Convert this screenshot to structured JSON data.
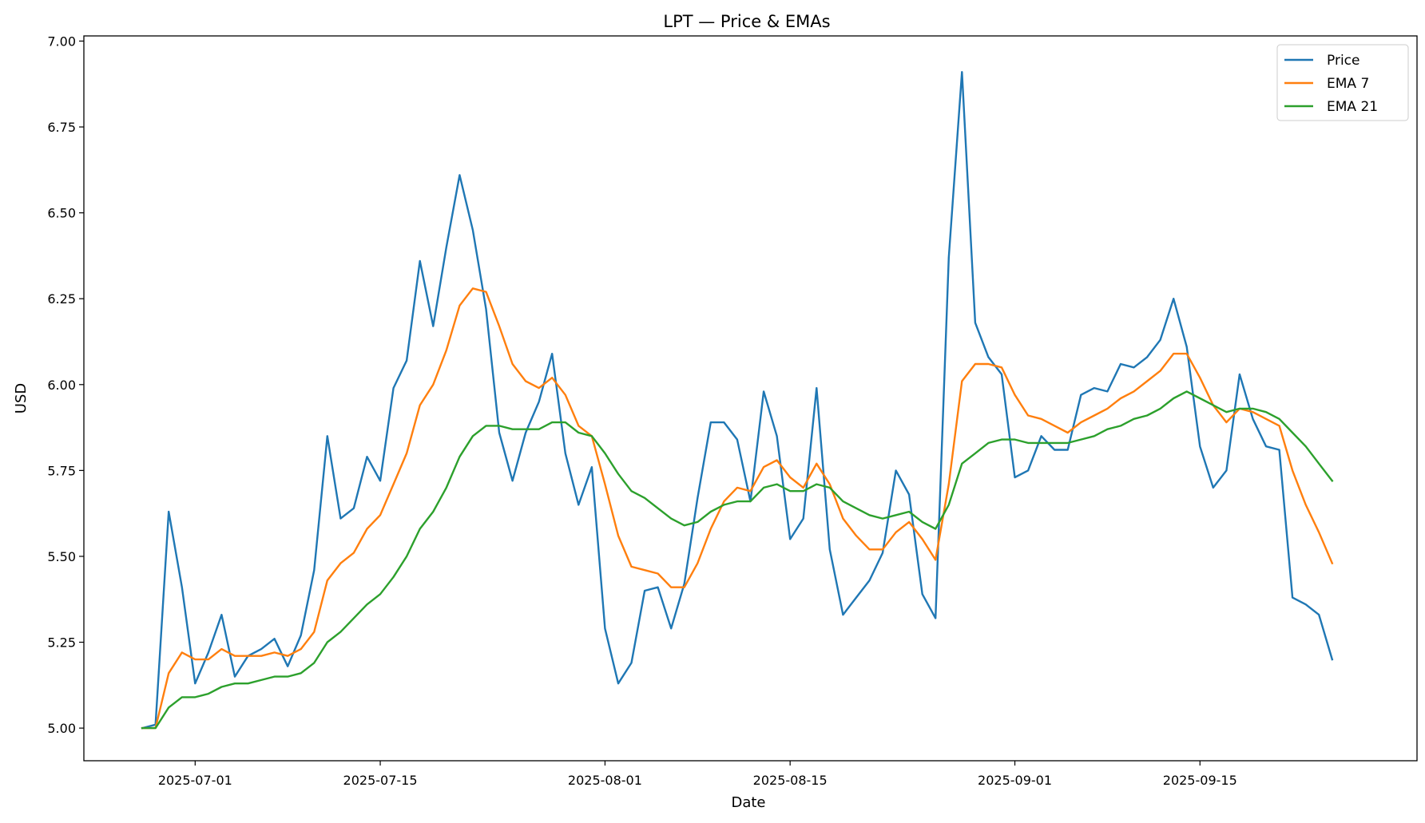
{
  "chart_data": {
    "type": "line",
    "title": "LPT — Price & EMAs",
    "xlabel": "Date",
    "ylabel": "USD",
    "start_date": "2025-06-27",
    "x_ticks": [
      "2025-07-01",
      "2025-07-15",
      "2025-08-01",
      "2025-08-15",
      "2025-09-01",
      "2025-09-15"
    ],
    "y_ticks": [
      "5.00",
      "5.25",
      "5.50",
      "5.75",
      "6.00",
      "6.25",
      "6.50",
      "6.75",
      "7.00"
    ],
    "xlim": [
      "2025-06-22T14:00",
      "2025-10-01T10:00"
    ],
    "ylim": [
      4.905,
      7.015
    ],
    "grid": false,
    "legend_position": "upper-right",
    "series": [
      {
        "name": "Price",
        "color": "#1f77b4",
        "values": [
          5.0,
          5.01,
          5.63,
          5.41,
          5.13,
          5.22,
          5.33,
          5.15,
          5.21,
          5.23,
          5.26,
          5.18,
          5.27,
          5.46,
          5.85,
          5.61,
          5.64,
          5.79,
          5.72,
          5.99,
          6.07,
          6.36,
          6.17,
          6.4,
          6.61,
          6.45,
          6.22,
          5.86,
          5.72,
          5.86,
          5.95,
          6.09,
          5.8,
          5.65,
          5.76,
          5.29,
          5.13,
          5.19,
          5.4,
          5.41,
          5.29,
          5.42,
          5.67,
          5.89,
          5.89,
          5.84,
          5.66,
          5.98,
          5.85,
          5.55,
          5.61,
          5.99,
          5.52,
          5.33,
          5.38,
          5.43,
          5.51,
          5.75,
          5.68,
          5.39,
          5.32,
          6.37,
          6.91,
          6.18,
          6.08,
          6.03,
          5.73,
          5.75,
          5.85,
          5.81,
          5.81,
          5.97,
          5.99,
          5.98,
          6.06,
          6.05,
          6.08,
          6.13,
          6.25,
          6.11,
          5.82,
          5.7,
          5.75,
          6.03,
          5.9,
          5.82,
          5.81,
          5.38,
          5.36,
          5.33,
          5.2
        ]
      },
      {
        "name": "EMA 7",
        "color": "#ff7f0e",
        "values": [
          5.0,
          5.0,
          5.16,
          5.22,
          5.2,
          5.2,
          5.23,
          5.21,
          5.21,
          5.21,
          5.22,
          5.21,
          5.23,
          5.28,
          5.43,
          5.48,
          5.51,
          5.58,
          5.62,
          5.71,
          5.8,
          5.94,
          6.0,
          6.1,
          6.23,
          6.28,
          6.27,
          6.17,
          6.06,
          6.01,
          5.99,
          6.02,
          5.97,
          5.88,
          5.85,
          5.71,
          5.56,
          5.47,
          5.46,
          5.45,
          5.41,
          5.41,
          5.48,
          5.58,
          5.66,
          5.7,
          5.69,
          5.76,
          5.78,
          5.73,
          5.7,
          5.77,
          5.71,
          5.61,
          5.56,
          5.52,
          5.52,
          5.57,
          5.6,
          5.55,
          5.49,
          5.71,
          6.01,
          6.06,
          6.06,
          6.05,
          5.97,
          5.91,
          5.9,
          5.88,
          5.86,
          5.89,
          5.91,
          5.93,
          5.96,
          5.98,
          6.01,
          6.04,
          6.09,
          6.09,
          6.02,
          5.94,
          5.89,
          5.93,
          5.92,
          5.9,
          5.88,
          5.75,
          5.65,
          5.57,
          5.48
        ]
      },
      {
        "name": "EMA 21",
        "color": "#2ca02c",
        "values": [
          5.0,
          5.0,
          5.06,
          5.09,
          5.09,
          5.1,
          5.12,
          5.13,
          5.13,
          5.14,
          5.15,
          5.15,
          5.16,
          5.19,
          5.25,
          5.28,
          5.32,
          5.36,
          5.39,
          5.44,
          5.5,
          5.58,
          5.63,
          5.7,
          5.79,
          5.85,
          5.88,
          5.88,
          5.87,
          5.87,
          5.87,
          5.89,
          5.89,
          5.86,
          5.85,
          5.8,
          5.74,
          5.69,
          5.67,
          5.64,
          5.61,
          5.59,
          5.6,
          5.63,
          5.65,
          5.66,
          5.66,
          5.7,
          5.71,
          5.69,
          5.69,
          5.71,
          5.7,
          5.66,
          5.64,
          5.62,
          5.61,
          5.62,
          5.63,
          5.6,
          5.58,
          5.65,
          5.77,
          5.8,
          5.83,
          5.84,
          5.84,
          5.83,
          5.83,
          5.83,
          5.83,
          5.84,
          5.85,
          5.87,
          5.88,
          5.9,
          5.91,
          5.93,
          5.96,
          5.98,
          5.96,
          5.94,
          5.92,
          5.93,
          5.93,
          5.92,
          5.9,
          5.86,
          5.82,
          5.77,
          5.72
        ]
      }
    ]
  }
}
